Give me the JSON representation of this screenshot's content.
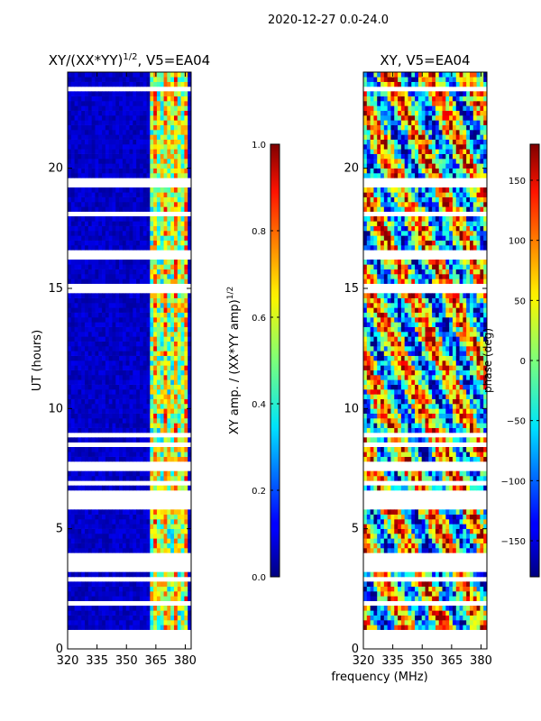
{
  "figure": {
    "suptitle": "2020-12-27 0.0-24.0",
    "shared_xlabel": "frequency (MHz)"
  },
  "chart_data": [
    {
      "type": "heatmap",
      "id": "amp-ratio",
      "title": "XY/(XX*YY)",
      "title_sup": "1/2",
      "title_suffix": ", V5=EA04",
      "xlabel": "frequency (MHz)",
      "ylabel": "UT (hours)",
      "xlim": [
        320,
        383
      ],
      "ylim": [
        0,
        24
      ],
      "xticks": [
        320,
        335,
        350,
        365,
        380
      ],
      "yticks": [
        0,
        5,
        10,
        15,
        20
      ],
      "colorbar": {
        "label": "XY amp. / (XX*YY amp)",
        "label_sup": "1/2",
        "range": [
          0.0,
          1.0
        ],
        "ticks": [
          "0.0",
          "0.2",
          "0.4",
          "0.6",
          "0.8",
          "1.0"
        ],
        "tick_values": [
          0.0,
          0.2,
          0.4,
          0.6,
          0.8,
          1.0
        ],
        "colormap": "jet"
      },
      "bright_band_mhz": [
        362,
        382
      ],
      "data_gaps_hours": [
        [
          0.0,
          0.7
        ],
        [
          3.2,
          3.85
        ],
        [
          6.1,
          6.45
        ],
        [
          16.3,
          16.6
        ],
        [
          19.3,
          19.55
        ]
      ]
    },
    {
      "type": "heatmap",
      "id": "phase",
      "title": "XY, V5=EA04",
      "xlabel": "frequency (MHz)",
      "ylabel": "",
      "xlim": [
        320,
        383
      ],
      "ylim": [
        0,
        24
      ],
      "xticks": [
        320,
        335,
        350,
        365,
        380
      ],
      "yticks": [
        0,
        5,
        10,
        15,
        20
      ],
      "colorbar": {
        "label": "phase (deg)",
        "range": [
          -180,
          180
        ],
        "ticks": [
          "−150",
          "−100",
          "−50",
          "0",
          "50",
          "100",
          "150"
        ],
        "tick_values": [
          -150,
          -100,
          -50,
          0,
          50,
          100,
          150
        ],
        "colormap": "jet"
      },
      "data_gaps_hours": [
        [
          0.0,
          0.7
        ],
        [
          3.2,
          3.85
        ],
        [
          6.1,
          6.45
        ],
        [
          16.3,
          16.6
        ],
        [
          19.3,
          19.55
        ]
      ]
    }
  ]
}
